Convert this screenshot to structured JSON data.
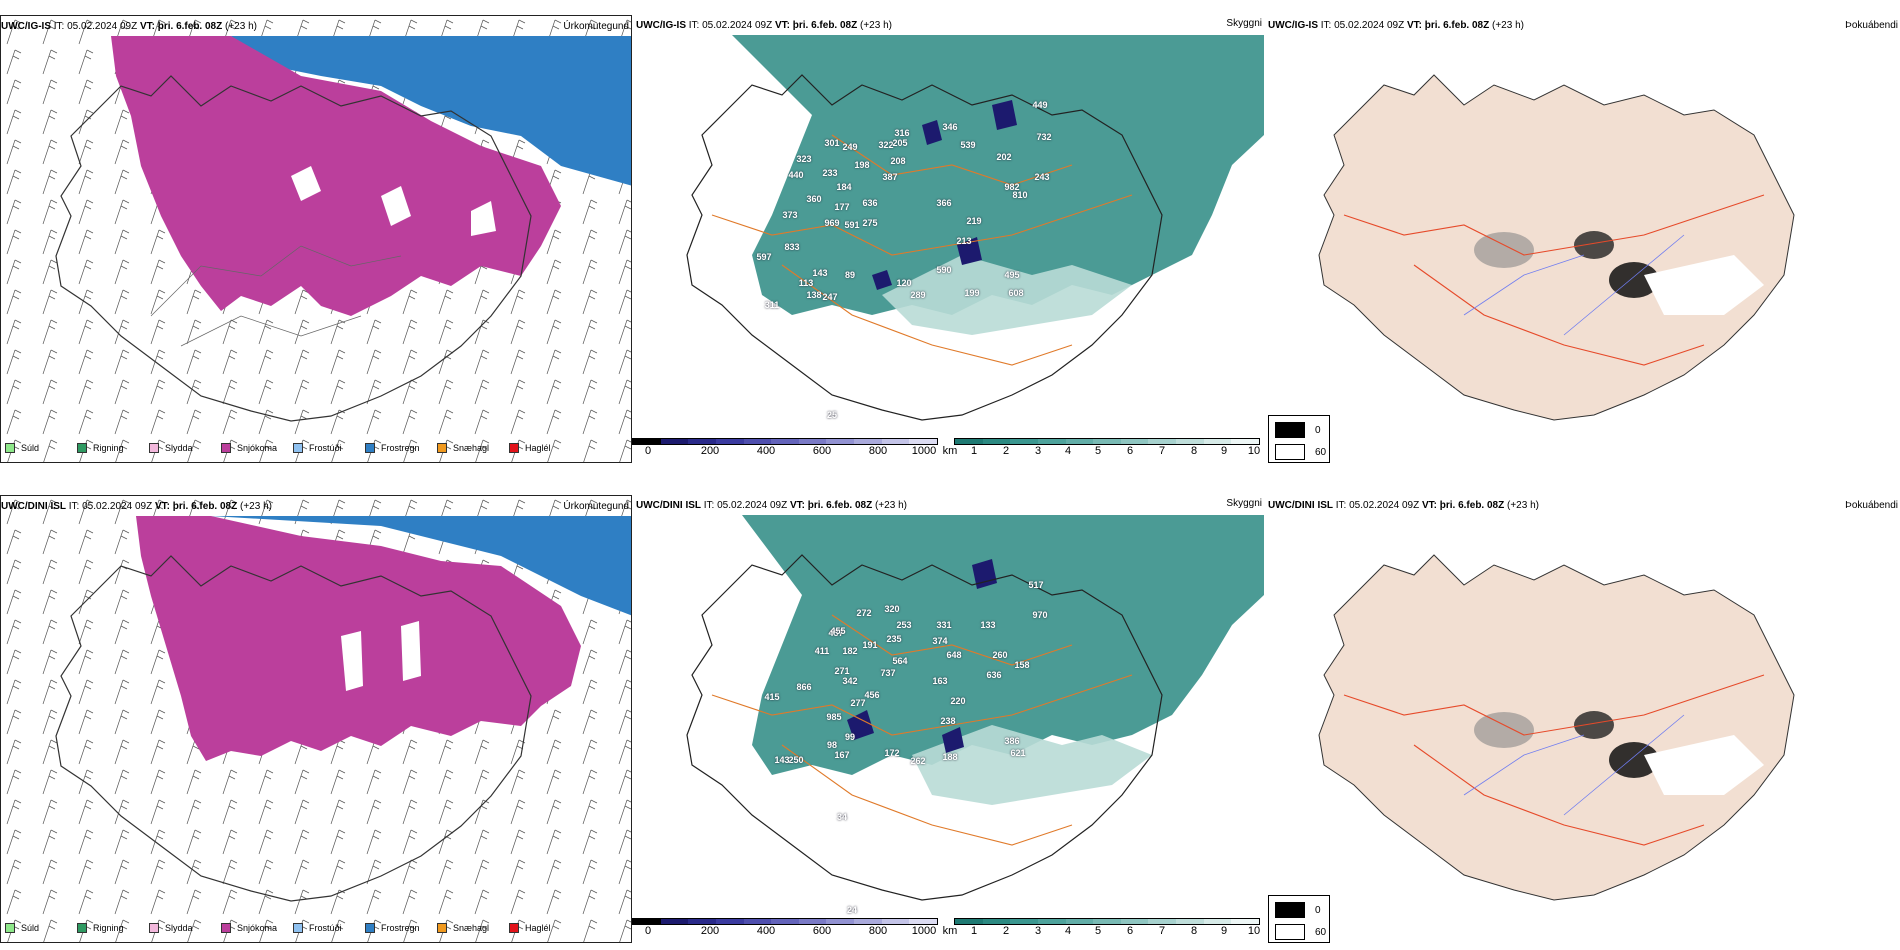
{
  "colors": {
    "snow": "#bb3f9c",
    "freezing_rain": "#2f7fc4",
    "cloud_dark": "#2c8a82",
    "cloud_light": "#b9dcd6",
    "land": "#f2dfd2",
    "roads": "#e07a2a",
    "rivers": "#6f7cf0"
  },
  "rows": [
    {
      "model_label": "UWC/IG-IS",
      "it_label": "IT: 05.02.2024 09Z",
      "vt_label": "VT: þri. 6.feb. 08Z",
      "lead": "(+23 h)",
      "labels": [
        "597",
        "833",
        "373",
        "360",
        "440",
        "323",
        "301",
        "233",
        "249",
        "198",
        "322",
        "205",
        "208",
        "184",
        "177",
        "636",
        "387",
        "591",
        "275",
        "969",
        "143",
        "113",
        "138",
        "89",
        "120",
        "247",
        "289",
        "311",
        "590",
        "366",
        "219",
        "213",
        "199",
        "495",
        "608",
        "982",
        "202",
        "810",
        "243",
        "449",
        "732",
        "539",
        "346",
        "25",
        "316"
      ]
    },
    {
      "model_label": "UWC/DINI ISL",
      "it_label": "IT: 05.02.2024 09Z",
      "vt_label": "VT: þri. 6.feb. 08Z",
      "lead": "(+23 h)",
      "labels": [
        "985",
        "415",
        "866",
        "411",
        "437",
        "455",
        "182",
        "271",
        "272",
        "320",
        "253",
        "235",
        "191",
        "564",
        "737",
        "342",
        "456",
        "277",
        "99",
        "98",
        "250",
        "143",
        "167",
        "172",
        "262",
        "188",
        "238",
        "220",
        "163",
        "648",
        "636",
        "260",
        "158",
        "386",
        "621",
        "517",
        "970",
        "374",
        "331",
        "133",
        "24",
        "34"
      ]
    }
  ],
  "panels": {
    "precip_title": "Úrkomutegund",
    "cloud_title": "Skyggni",
    "fog_title": "Þokuábendi"
  },
  "precip_legend": [
    {
      "label": "Súld",
      "color": "#8ee88a"
    },
    {
      "label": "Rigning",
      "color": "#2f9a62"
    },
    {
      "label": "Slydda",
      "color": "#f2b8dc"
    },
    {
      "label": "Snjókoma",
      "color": "#bb3f9c"
    },
    {
      "label": "Frostúði",
      "color": "#8fc1f0"
    },
    {
      "label": "Frostregn",
      "color": "#2f7fc4"
    },
    {
      "label": "Snæhagl",
      "color": "#f19a1f"
    },
    {
      "label": "Haglél",
      "color": "#e3131b"
    }
  ],
  "elev_bar": {
    "unit": "m",
    "ticks": [
      "0",
      "200",
      "400",
      "600",
      "800",
      "1000"
    ],
    "colors": [
      "#000000",
      "#1c1a6e",
      "#2a2a8a",
      "#3b3ba0",
      "#4f4fae",
      "#6464bb",
      "#7a7ac6",
      "#9292d2",
      "#aaaadc",
      "#c4c4e8",
      "#dcdcf2"
    ]
  },
  "vis_bar": {
    "unit": "km",
    "ticks": [
      "1",
      "2",
      "3",
      "4",
      "5",
      "6",
      "7",
      "8",
      "9",
      "10"
    ],
    "colors": [
      "#1f7a73",
      "#2c8a82",
      "#3b9790",
      "#4ea39c",
      "#62aea8",
      "#79bab4",
      "#8fc6c1",
      "#a7d2ce",
      "#bfdeda",
      "#d7ebe8",
      "#eef7f6"
    ]
  },
  "fog_bar": {
    "low_label": "0",
    "high_label": "60",
    "low_color": "#000000",
    "high_color": "#ffffff"
  }
}
